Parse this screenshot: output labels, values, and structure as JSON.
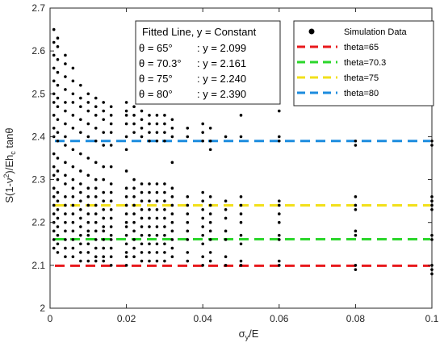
{
  "chart_data": {
    "type": "scatter",
    "xlabel": "σ_y/E",
    "ylabel": "S(1-ν²)/Eh_c tanθ",
    "xlim": [
      0,
      0.1
    ],
    "ylim": [
      2,
      2.7
    ],
    "x_ticks": [
      "0",
      "0.02",
      "0.04",
      "0.06",
      "0.08",
      "0.1"
    ],
    "x_tick_values": [
      0,
      0.02,
      0.04,
      0.06,
      0.08,
      0.1
    ],
    "y_ticks": [
      "2",
      "2.1",
      "2.2",
      "2.3",
      "2.4",
      "2.5",
      "2.6",
      "2.7"
    ],
    "y_tick_values": [
      2,
      2.1,
      2.2,
      2.3,
      2.4,
      2.5,
      2.6,
      2.7
    ],
    "grid": false,
    "legend_placement": "top-right",
    "legend": [
      {
        "label": "Simulation Data",
        "marker": "dot",
        "color": "#000000"
      },
      {
        "label": "theta=65",
        "marker": "dashed-line",
        "color": "#e8191c"
      },
      {
        "label": "theta=70.3",
        "marker": "dashed-line",
        "color": "#2bd62b"
      },
      {
        "label": "theta=75",
        "marker": "dashed-line",
        "color": "#f2e01b"
      },
      {
        "label": "theta=80",
        "marker": "dashed-line",
        "color": "#1c8cde"
      }
    ],
    "annotation": {
      "title": "Fitted Line, y = Constant",
      "rows": [
        {
          "label": "θ = 65°",
          "value": ": y = 2.099"
        },
        {
          "label": "θ = 70.3°",
          "value": ": y = 2.161"
        },
        {
          "label": "θ = 75°",
          "value": ": y = 2.240"
        },
        {
          "label": "θ = 80°",
          "value": ": y = 2.390"
        }
      ]
    },
    "fitted_lines": [
      {
        "name": "theta=65",
        "y": 2.099,
        "color": "#e8191c"
      },
      {
        "name": "theta=70.3",
        "y": 2.161,
        "color": "#2bd62b"
      },
      {
        "name": "theta=75",
        "y": 2.24,
        "color": "#f2e01b"
      },
      {
        "name": "theta=80",
        "y": 2.39,
        "color": "#1c8cde"
      }
    ],
    "scatter_columns": [
      {
        "x": 0.001,
        "y": [
          2.14,
          2.16,
          2.18,
          2.2,
          2.22,
          2.24,
          2.26,
          2.28,
          2.31,
          2.33,
          2.36,
          2.4,
          2.42,
          2.45,
          2.48,
          2.5,
          2.53,
          2.56,
          2.59,
          2.62,
          2.65
        ]
      },
      {
        "x": 0.002,
        "y": [
          2.13,
          2.15,
          2.17,
          2.19,
          2.21,
          2.23,
          2.25,
          2.27,
          2.3,
          2.32,
          2.35,
          2.39,
          2.41,
          2.44,
          2.47,
          2.49,
          2.52,
          2.55,
          2.58,
          2.61,
          2.63
        ]
      },
      {
        "x": 0.004,
        "y": [
          2.12,
          2.14,
          2.16,
          2.18,
          2.2,
          2.22,
          2.24,
          2.26,
          2.29,
          2.31,
          2.34,
          2.38,
          2.4,
          2.43,
          2.46,
          2.48,
          2.51,
          2.54,
          2.57,
          2.59
        ]
      },
      {
        "x": 0.006,
        "y": [
          2.12,
          2.14,
          2.16,
          2.18,
          2.2,
          2.22,
          2.24,
          2.26,
          2.28,
          2.3,
          2.33,
          2.37,
          2.42,
          2.45,
          2.48,
          2.5,
          2.53,
          2.56
        ]
      },
      {
        "x": 0.008,
        "y": [
          2.11,
          2.13,
          2.15,
          2.17,
          2.19,
          2.21,
          2.23,
          2.25,
          2.27,
          2.29,
          2.32,
          2.36,
          2.41,
          2.44,
          2.47,
          2.49,
          2.52
        ]
      },
      {
        "x": 0.01,
        "y": [
          2.11,
          2.13,
          2.15,
          2.17,
          2.18,
          2.2,
          2.22,
          2.24,
          2.26,
          2.28,
          2.31,
          2.35,
          2.4,
          2.43,
          2.46,
          2.48,
          2.5
        ]
      },
      {
        "x": 0.012,
        "y": [
          2.11,
          2.12,
          2.14,
          2.16,
          2.18,
          2.2,
          2.22,
          2.24,
          2.26,
          2.28,
          2.3,
          2.34,
          2.39,
          2.42,
          2.45,
          2.47,
          2.49
        ]
      },
      {
        "x": 0.014,
        "y": [
          2.11,
          2.12,
          2.14,
          2.16,
          2.18,
          2.19,
          2.21,
          2.23,
          2.25,
          2.27,
          2.3,
          2.33,
          2.38,
          2.41,
          2.44,
          2.46,
          2.48
        ]
      },
      {
        "x": 0.016,
        "y": [
          2.1,
          2.12,
          2.14,
          2.16,
          2.17,
          2.19,
          2.21,
          2.23,
          2.25,
          2.27,
          2.29,
          2.33,
          2.38,
          2.41,
          2.43,
          2.45,
          2.47
        ]
      },
      {
        "x": 0.02,
        "y": [
          2.1,
          2.12,
          2.13,
          2.15,
          2.17,
          2.19,
          2.2,
          2.22,
          2.24,
          2.26,
          2.28,
          2.32,
          2.37,
          2.4,
          2.43,
          2.45,
          2.46,
          2.48
        ]
      },
      {
        "x": 0.022,
        "y": [
          2.12,
          2.14,
          2.16,
          2.18,
          2.2,
          2.22,
          2.24,
          2.26,
          2.28,
          2.3,
          2.41,
          2.43,
          2.45,
          2.47
        ]
      },
      {
        "x": 0.024,
        "y": [
          2.11,
          2.13,
          2.15,
          2.17,
          2.19,
          2.21,
          2.23,
          2.25,
          2.27,
          2.29,
          2.4,
          2.42,
          2.44,
          2.46
        ]
      },
      {
        "x": 0.026,
        "y": [
          2.11,
          2.13,
          2.15,
          2.17,
          2.19,
          2.21,
          2.23,
          2.25,
          2.27,
          2.29,
          2.39,
          2.41,
          2.43,
          2.45
        ]
      },
      {
        "x": 0.028,
        "y": [
          2.11,
          2.13,
          2.15,
          2.17,
          2.19,
          2.21,
          2.23,
          2.25,
          2.27,
          2.29,
          2.39,
          2.41,
          2.43,
          2.45
        ]
      },
      {
        "x": 0.03,
        "y": [
          2.11,
          2.13,
          2.15,
          2.17,
          2.19,
          2.21,
          2.23,
          2.25,
          2.27,
          2.29,
          2.39,
          2.41,
          2.43,
          2.45
        ]
      },
      {
        "x": 0.032,
        "y": [
          2.12,
          2.14,
          2.16,
          2.18,
          2.2,
          2.22,
          2.24,
          2.26,
          2.28,
          2.34,
          2.4,
          2.42,
          2.44
        ]
      },
      {
        "x": 0.036,
        "y": [
          2.11,
          2.13,
          2.16,
          2.18,
          2.2,
          2.22,
          2.24,
          2.26,
          2.4,
          2.42
        ]
      },
      {
        "x": 0.04,
        "y": [
          2.1,
          2.12,
          2.15,
          2.17,
          2.19,
          2.21,
          2.23,
          2.25,
          2.27,
          2.39,
          2.41,
          2.43
        ]
      },
      {
        "x": 0.042,
        "y": [
          2.11,
          2.13,
          2.16,
          2.18,
          2.2,
          2.22,
          2.24,
          2.26,
          2.37,
          2.39,
          2.42
        ]
      },
      {
        "x": 0.046,
        "y": [
          2.1,
          2.12,
          2.16,
          2.18,
          2.21,
          2.23,
          2.25,
          2.4
        ]
      },
      {
        "x": 0.05,
        "y": [
          2.1,
          2.11,
          2.15,
          2.17,
          2.2,
          2.22,
          2.24,
          2.26,
          2.4,
          2.45
        ]
      },
      {
        "x": 0.06,
        "y": [
          2.1,
          2.11,
          2.16,
          2.17,
          2.2,
          2.22,
          2.24,
          2.25,
          2.39,
          2.4,
          2.46
        ]
      },
      {
        "x": 0.08,
        "y": [
          2.09,
          2.1,
          2.17,
          2.18,
          2.23,
          2.24,
          2.26,
          2.38,
          2.39
        ]
      },
      {
        "x": 0.1,
        "y": [
          2.08,
          2.09,
          2.1,
          2.16,
          2.17,
          2.23,
          2.24,
          2.25,
          2.26,
          2.38,
          2.39
        ]
      }
    ]
  }
}
